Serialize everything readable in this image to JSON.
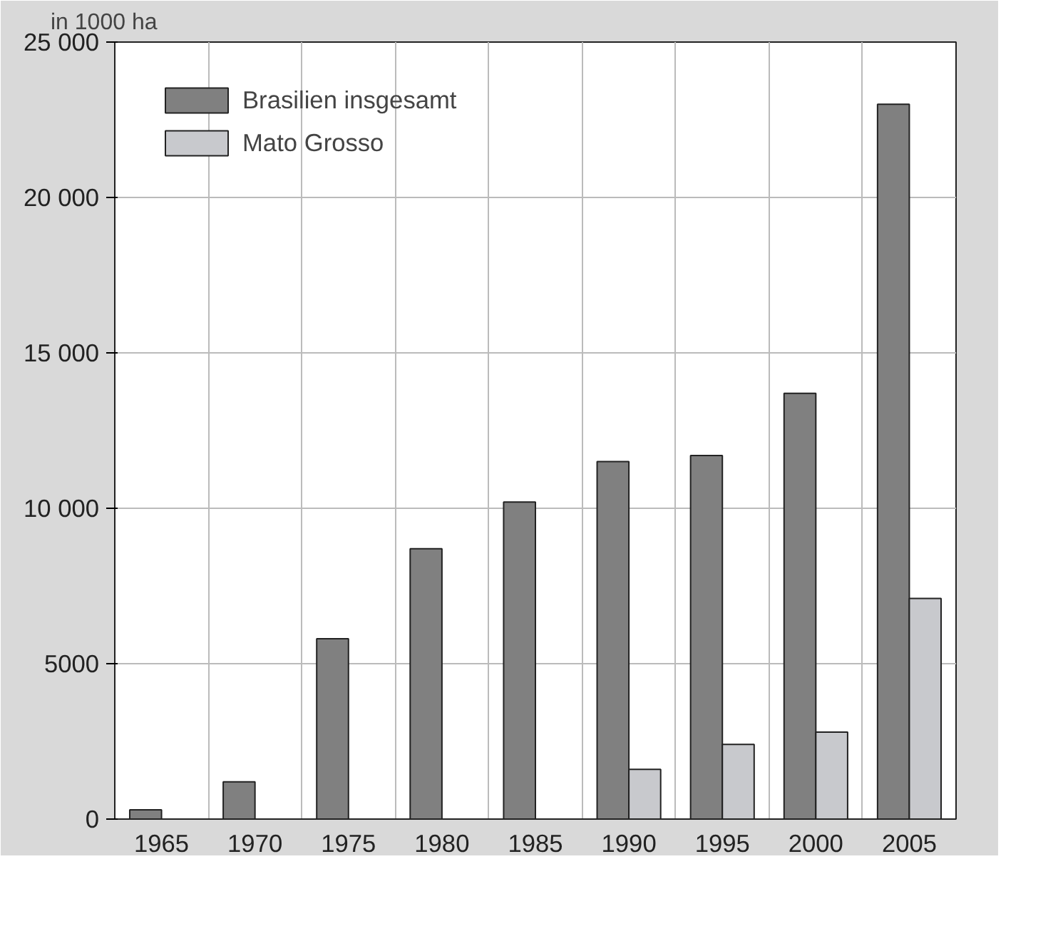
{
  "chart_data": {
    "type": "bar",
    "ylabel": "in 1000 ha",
    "categories": [
      "1965",
      "1970",
      "1975",
      "1980",
      "1985",
      "1990",
      "1995",
      "2000",
      "2005"
    ],
    "series": [
      {
        "name": "Brasilien insgesamt",
        "color": "#808080",
        "values": [
          300,
          1200,
          5800,
          8700,
          10200,
          11500,
          11700,
          13700,
          23000
        ]
      },
      {
        "name": "Mato Grosso",
        "color": "#c8c9cd",
        "values": [
          null,
          null,
          null,
          null,
          null,
          1600,
          2400,
          2800,
          7100
        ]
      }
    ],
    "ylim": [
      0,
      25000
    ],
    "yticks": [
      0,
      {
        "value": 5000,
        "label": "5000"
      },
      {
        "value": 10000,
        "label": "10 000"
      },
      {
        "value": 15000,
        "label": "15 000"
      },
      {
        "value": 20000,
        "label": "20 000"
      },
      {
        "value": 25000,
        "label": "25 000"
      }
    ],
    "grid": true,
    "legend": "top left"
  }
}
